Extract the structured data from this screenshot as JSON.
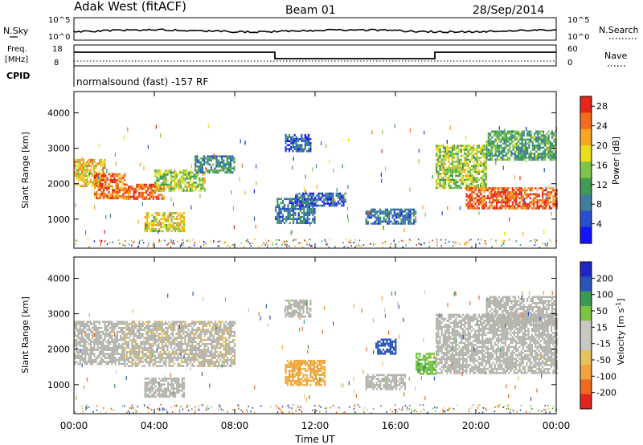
{
  "header": {
    "station": "Adak West (fitACF)",
    "beam": "Beam 01",
    "date": "28/Sep/2014"
  },
  "strip_panels": {
    "nsky": {
      "label": "N.Sky",
      "ticks": [
        "10^5",
        "10^0"
      ],
      "right_label": "N.Search",
      "right_ticks": [
        "10^5",
        "10^0"
      ]
    },
    "freq": {
      "label_line1": "Freq.",
      "label_line2": "[MHz]",
      "ticks": [
        "18",
        "8"
      ],
      "right_label": "Nave",
      "right_ticks": [
        "60",
        "0"
      ]
    },
    "cpid": {
      "label": "CPID",
      "text": "normalsound (fast) -157 RF"
    }
  },
  "colors": {
    "power_scale": [
      "#1414ff",
      "#2a4ecf",
      "#3e7f9b",
      "#3f9a52",
      "#7ec34a",
      "#e8de1a",
      "#f5a623",
      "#f36b1c",
      "#e8251a"
    ],
    "velocity_scale": [
      "#e5231b",
      "#ef6a1e",
      "#f2a33a",
      "#e7c25c",
      "#c8c8c0",
      "#c8c8c0",
      "#7bc342",
      "#3b9a52",
      "#2a55b8",
      "#2026c8"
    ],
    "ground_scatter": "#b4b4ac"
  },
  "chart_data": [
    {
      "type": "heatmap",
      "name_on_chart": "Power [dB]",
      "ylabel": "Slant Range [km]",
      "xlabel": "",
      "x_ticks": [
        "00:00",
        "04:00",
        "08:00",
        "12:00",
        "16:00",
        "20:00",
        "00:00"
      ],
      "x_range_hours": [
        0,
        24
      ],
      "y_ticks": [
        1000,
        2000,
        3000,
        4000
      ],
      "ylim": [
        180,
        4600
      ],
      "colorbar_label": "Power [dB]",
      "colorbar_ticks": [
        4,
        8,
        12,
        16,
        20,
        24,
        28
      ],
      "colorbar_range": [
        0,
        30
      ],
      "regions": [
        {
          "t0": 0.0,
          "t1": 1.5,
          "r0": 1950,
          "r1": 2700,
          "value": 20
        },
        {
          "t0": 1.0,
          "t1": 2.5,
          "r0": 1600,
          "r1": 2300,
          "value": 24
        },
        {
          "t0": 2.5,
          "t1": 4.5,
          "r0": 1550,
          "r1": 2000,
          "value": 26
        },
        {
          "t0": 4.0,
          "t1": 6.5,
          "r0": 1800,
          "r1": 2400,
          "value": 16
        },
        {
          "t0": 6.0,
          "t1": 8.0,
          "r0": 2300,
          "r1": 2800,
          "value": 10
        },
        {
          "t0": 3.5,
          "t1": 5.5,
          "r0": 650,
          "r1": 1200,
          "value": 18
        },
        {
          "t0": 10.0,
          "t1": 12.0,
          "r0": 900,
          "r1": 1600,
          "value": 8
        },
        {
          "t0": 11.0,
          "t1": 13.5,
          "r0": 1400,
          "r1": 1750,
          "value": 6
        },
        {
          "t0": 10.5,
          "t1": 11.8,
          "r0": 2900,
          "r1": 3400,
          "value": 6
        },
        {
          "t0": 14.5,
          "t1": 17.0,
          "r0": 850,
          "r1": 1300,
          "value": 8
        },
        {
          "t0": 18.0,
          "t1": 20.5,
          "r0": 1900,
          "r1": 3100,
          "value": 16
        },
        {
          "t0": 19.5,
          "t1": 24.0,
          "r0": 1300,
          "r1": 1900,
          "value": 26
        },
        {
          "t0": 20.5,
          "t1": 24.0,
          "r0": 2700,
          "r1": 3500,
          "value": 12
        }
      ]
    },
    {
      "type": "heatmap",
      "name_on_chart": "Velocity [m s^-1]",
      "ylabel": "Slant Range [km]",
      "xlabel": "Time UT",
      "x_ticks": [
        "00:00",
        "04:00",
        "08:00",
        "12:00",
        "16:00",
        "20:00",
        "00:00"
      ],
      "x_range_hours": [
        0,
        24
      ],
      "y_ticks": [
        1000,
        2000,
        3000,
        4000
      ],
      "ylim": [
        180,
        4600
      ],
      "colorbar_label": "Velocity [m s^-1]",
      "colorbar_ticks": [
        200,
        100,
        50,
        15,
        -15,
        -50,
        -100,
        -200
      ],
      "colorbar_range": [
        -250,
        250
      ],
      "regions": [
        {
          "t0": 0.0,
          "t1": 2.5,
          "r0": 1600,
          "r1": 2800,
          "value": 0
        },
        {
          "t0": 2.5,
          "t1": 8.0,
          "r0": 1550,
          "r1": 2800,
          "value": -5
        },
        {
          "t0": 3.5,
          "t1": 5.5,
          "r0": 650,
          "r1": 1200,
          "value": 0
        },
        {
          "t0": 10.5,
          "t1": 12.5,
          "r0": 1000,
          "r1": 1700,
          "value": -60
        },
        {
          "t0": 10.5,
          "t1": 11.8,
          "r0": 2900,
          "r1": 3400,
          "value": 0
        },
        {
          "t0": 14.5,
          "t1": 16.5,
          "r0": 850,
          "r1": 1300,
          "value": 0
        },
        {
          "t0": 15.0,
          "t1": 16.0,
          "r0": 1900,
          "r1": 2300,
          "value": 120
        },
        {
          "t0": 17.0,
          "t1": 18.0,
          "r0": 1300,
          "r1": 1900,
          "value": 40
        },
        {
          "t0": 18.0,
          "t1": 24.0,
          "r0": 1300,
          "r1": 3000,
          "value": 0
        },
        {
          "t0": 20.5,
          "t1": 24.0,
          "r0": 2700,
          "r1": 3500,
          "value": 0
        }
      ]
    }
  ]
}
